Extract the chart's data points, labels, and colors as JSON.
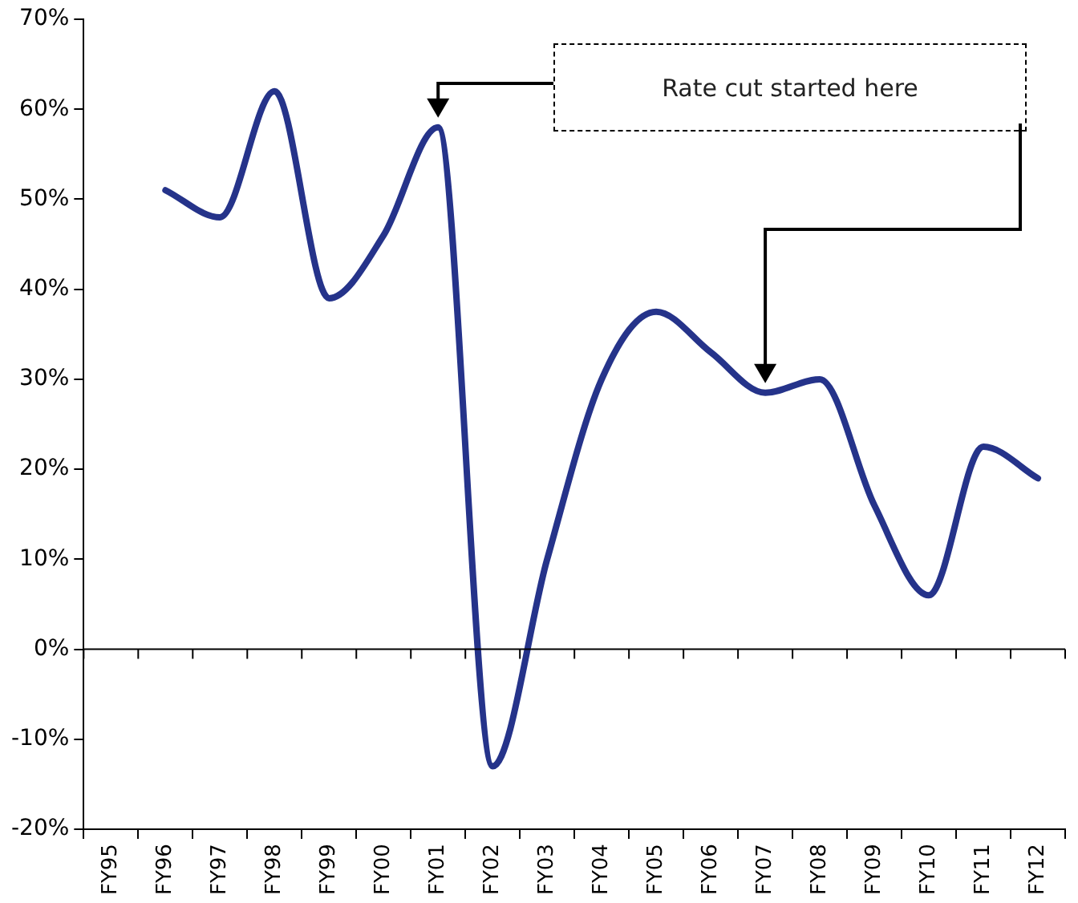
{
  "chart_data": {
    "type": "line",
    "categories": [
      "FY95",
      "FY96",
      "FY97",
      "FY98",
      "FY99",
      "FY00",
      "FY01",
      "FY02",
      "FY03",
      "FY04",
      "FY05",
      "FY06",
      "FY07",
      "FY08",
      "FY09",
      "FY10",
      "FY11",
      "FY12"
    ],
    "series": [
      {
        "color": "#25338a",
        "values": [
          null,
          51,
          48,
          62,
          39,
          46,
          58,
          -13,
          10,
          30,
          37.5,
          33,
          28.5,
          30,
          16,
          6,
          22.5,
          19
        ]
      }
    ],
    "ylim": [
      -20,
      70
    ],
    "yticks": [
      {
        "value": -20,
        "label": "-20%"
      },
      {
        "value": -10,
        "label": "-10%"
      },
      {
        "value": 0,
        "label": "0%"
      },
      {
        "value": 10,
        "label": "10%"
      },
      {
        "value": 20,
        "label": "20%"
      },
      {
        "value": 30,
        "label": "30%"
      },
      {
        "value": 40,
        "label": "40%"
      },
      {
        "value": 50,
        "label": "50%"
      },
      {
        "value": 60,
        "label": "60%"
      },
      {
        "value": 70,
        "label": "70%"
      }
    ],
    "annotations": [
      "Rate cut started here"
    ],
    "ref_lines": [
      {
        "axis": "y",
        "value": 0,
        "color": "#000000"
      }
    ],
    "grid": false,
    "legend": false,
    "marker": "none",
    "line_style": "solid"
  }
}
